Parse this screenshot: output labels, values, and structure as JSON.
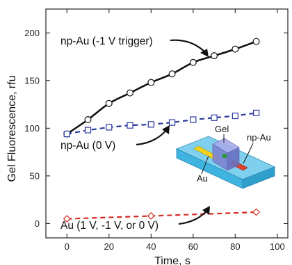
{
  "chart_data": {
    "type": "line",
    "xlabel": "Time, s",
    "ylabel": "Gel Fluorescence, rfu",
    "xlim": [
      -10,
      105
    ],
    "ylim": [
      -15,
      225
    ],
    "x_ticks": [
      0,
      20,
      40,
      60,
      80,
      100
    ],
    "y_ticks": [
      0,
      50,
      100,
      150,
      200
    ],
    "grid": false,
    "series": [
      {
        "name": "np-Au (-1 V trigger)",
        "color": "#111111",
        "marker": "circle",
        "line_style": "solid",
        "x": [
          0,
          10,
          20,
          30,
          40,
          50,
          60,
          70,
          80,
          90
        ],
        "values": [
          94,
          109,
          126,
          137,
          148,
          157,
          169,
          176,
          183,
          191
        ]
      },
      {
        "name": "np-Au (0 V)",
        "color": "#2b3aa0",
        "marker": "square",
        "line_style": "dashed",
        "x": [
          0,
          10,
          20,
          30,
          40,
          50,
          60,
          70,
          80,
          90
        ],
        "values": [
          94,
          98,
          101,
          103,
          104,
          106,
          109,
          111,
          113,
          116
        ]
      },
      {
        "name": "Au (1 V, -1 V, or 0 V)",
        "color": "#d42a20",
        "marker": "diamond",
        "line_style": "dashed",
        "x": [
          0,
          40,
          90
        ],
        "values": [
          5,
          8,
          12
        ]
      }
    ],
    "inset": {
      "labels": {
        "gel": "Gel",
        "au": "Au",
        "np_au": "np-Au"
      },
      "colors": {
        "substrate": "#3fb4e0",
        "gel": "#8a8fd8",
        "au": "#f2d21a",
        "np_au": "#e0402a"
      }
    }
  }
}
